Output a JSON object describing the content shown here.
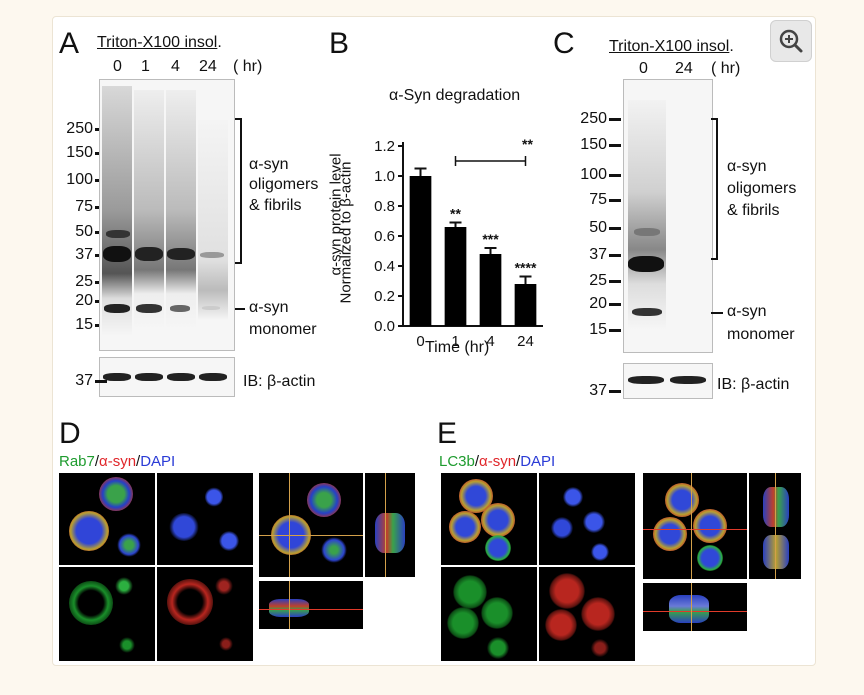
{
  "figure": {
    "panel_a": {
      "letter": "A",
      "header": "Triton-X100 insol",
      "header_suffix": ".",
      "lanes": [
        "0",
        "1",
        "4",
        "24"
      ],
      "unit": "( hr)",
      "mw_markers": [
        "250",
        "150",
        "100",
        "75",
        "50",
        "37",
        "25",
        "20",
        "15"
      ],
      "bracket_label": [
        "α-syn",
        "oligomers",
        "& fibrils"
      ],
      "monomer_label": [
        "α-syn",
        "monomer"
      ],
      "actin_mw": "37",
      "ib_label": "IB: β-actin"
    },
    "panel_b": {
      "letter": "B",
      "chart_data": {
        "type": "bar",
        "title": "α-Syn degradation",
        "categories": [
          "0",
          "1",
          "4",
          "24"
        ],
        "values": [
          1.0,
          0.66,
          0.48,
          0.28
        ],
        "errors": [
          0.05,
          0.03,
          0.04,
          0.05
        ],
        "significance": [
          "",
          "**",
          "***",
          "****"
        ],
        "bracket_significance": "**",
        "xlabel": "Time (hr)",
        "ylabel_line1": "α-syn protein  level",
        "ylabel_line2": "Normalized to β-actin",
        "ylim": [
          0,
          1.2
        ],
        "yticks": [
          "0.0",
          "0.2",
          "0.4",
          "0.6",
          "0.8",
          "1.0",
          "1.2"
        ],
        "bar_color": "#000000"
      }
    },
    "panel_c": {
      "letter": "C",
      "header": "Triton-X100 insol",
      "header_suffix": ".",
      "lanes": [
        "0",
        "24"
      ],
      "unit": "( hr)",
      "mw_markers": [
        "250",
        "150",
        "100",
        "75",
        "50",
        "37",
        "25",
        "20",
        "15"
      ],
      "bracket_label": [
        "α-syn",
        "oligomers",
        "& fibrils"
      ],
      "monomer_label": [
        "α-syn",
        "monomer"
      ],
      "actin_mw": "37",
      "ib_label": "IB: β-actin"
    },
    "panel_d": {
      "letter": "D",
      "legend": [
        {
          "text": "Rab7",
          "color": "#1e9b2e"
        },
        {
          "text": "/",
          "color": "#111111"
        },
        {
          "text": "α-syn",
          "color": "#e0262a"
        },
        {
          "text": "/",
          "color": "#111111"
        },
        {
          "text": "DAPI",
          "color": "#2a3bd6"
        }
      ]
    },
    "panel_e": {
      "letter": "E",
      "legend": [
        {
          "text": "LC3b",
          "color": "#1e9b2e"
        },
        {
          "text": "/",
          "color": "#111111"
        },
        {
          "text": "α-syn",
          "color": "#e0262a"
        },
        {
          "text": "/",
          "color": "#111111"
        },
        {
          "text": "DAPI",
          "color": "#2a3bd6"
        }
      ]
    },
    "zoom_icon": "zoom-in-icon"
  }
}
